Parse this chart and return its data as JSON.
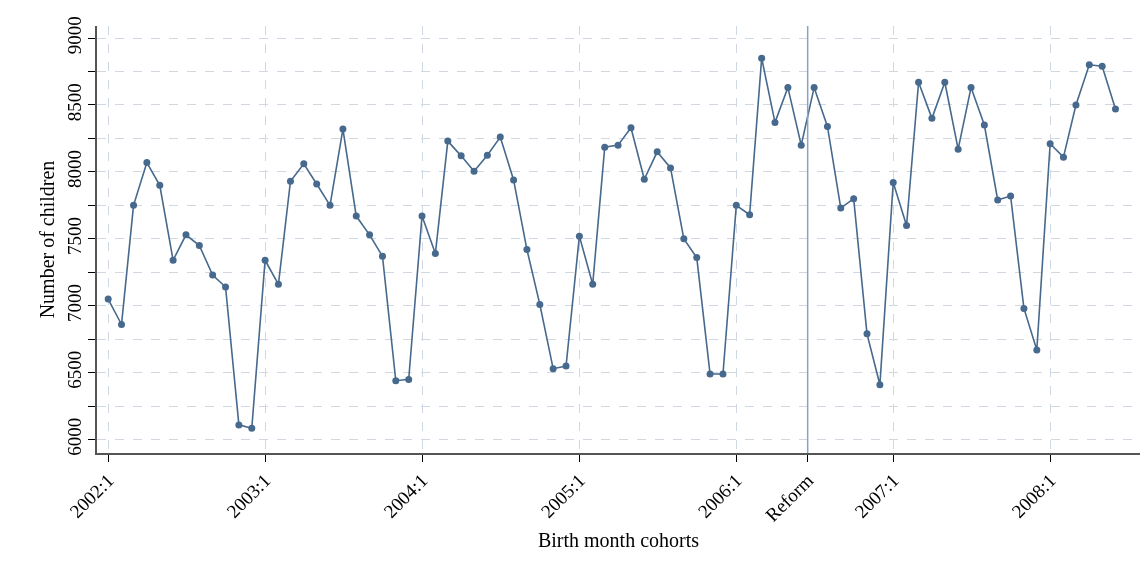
{
  "chart_data": {
    "type": "line",
    "xlabel": "Birth month cohorts",
    "ylabel": "Number of children",
    "x": [
      "2002-01",
      "2002-02",
      "2002-03",
      "2002-04",
      "2002-05",
      "2002-06",
      "2002-07",
      "2002-08",
      "2002-09",
      "2002-10",
      "2002-11",
      "2002-12",
      "2003-01",
      "2003-02",
      "2003-03",
      "2003-04",
      "2003-05",
      "2003-06",
      "2003-07",
      "2003-08",
      "2003-09",
      "2003-10",
      "2003-11",
      "2003-12",
      "2004-01",
      "2004-02",
      "2004-03",
      "2004-04",
      "2004-05",
      "2004-06",
      "2004-07",
      "2004-08",
      "2004-09",
      "2004-10",
      "2004-11",
      "2004-12",
      "2005-01",
      "2005-02",
      "2005-03",
      "2005-04",
      "2005-05",
      "2005-06",
      "2005-07",
      "2005-08",
      "2005-09",
      "2005-10",
      "2005-11",
      "2005-12",
      "2006-01",
      "2006-02",
      "2006-03",
      "2006-04",
      "2006-05",
      "2006-06",
      "2006-07",
      "2006-08",
      "2006-09",
      "2006-10",
      "2006-11",
      "2006-12",
      "2007-01",
      "2007-02",
      "2007-03",
      "2007-04",
      "2007-05",
      "2007-06",
      "2007-07",
      "2007-08",
      "2007-09",
      "2007-10",
      "2007-11",
      "2007-12",
      "2008-01",
      "2008-02",
      "2008-03",
      "2008-04",
      "2008-05",
      "2008-06"
    ],
    "series": [
      {
        "color": "#46698d",
        "values": [
          7050,
          6860,
          7750,
          8070,
          7900,
          7340,
          7530,
          7450,
          7230,
          7140,
          6110,
          6085,
          7340,
          7160,
          7930,
          8060,
          7910,
          7750,
          8320,
          7670,
          7530,
          7370,
          6440,
          6450,
          7670,
          7390,
          8230,
          8120,
          8005,
          8125,
          8260,
          7940,
          7420,
          7010,
          6530,
          6550,
          7520,
          7160,
          8185,
          8200,
          8330,
          7945,
          8150,
          8030,
          7500,
          7360,
          6490,
          6490,
          7750,
          7680,
          8850,
          8370,
          8630,
          8200,
          8630,
          8340,
          7730,
          7800,
          6790,
          6410,
          7920,
          7600,
          8670,
          8400,
          8670,
          8170,
          8630,
          8350,
          7790,
          7820,
          6980,
          6670,
          8210,
          8110,
          8500,
          8800,
          8790,
          8470
        ]
      }
    ],
    "xlim": [
      "2001-12-06",
      "2008-07-28"
    ],
    "xticks": [
      {
        "value": "2002-01",
        "label": "2002:1"
      },
      {
        "value": "2003-01",
        "label": "2003:1"
      },
      {
        "value": "2004-01",
        "label": "2004:1"
      },
      {
        "value": "2005-01",
        "label": "2005:1"
      },
      {
        "value": "2006-01",
        "label": "2006:1"
      },
      {
        "value": "2006-06-16",
        "label": "Reform"
      },
      {
        "value": "2007-01",
        "label": "2007:1"
      },
      {
        "value": "2008-01",
        "label": "2008:1"
      }
    ],
    "ylim": [
      5900,
      9090
    ],
    "yticks": [
      6000,
      {
        "value": 6250,
        "label": null
      },
      6500,
      {
        "value": 6750,
        "label": null
      },
      7000,
      {
        "value": 7250,
        "label": null
      },
      7500,
      {
        "value": 7750,
        "label": null
      },
      8000,
      {
        "value": 8250,
        "label": null
      },
      8500,
      {
        "value": 8750,
        "label": null
      },
      9000
    ],
    "ref_lines": [
      {
        "axis": "x",
        "value": "2006-06-16",
        "color": "#8aa3bf",
        "line_style": "solid"
      }
    ],
    "grid": true,
    "marker": "circle",
    "line_style": "solid"
  }
}
